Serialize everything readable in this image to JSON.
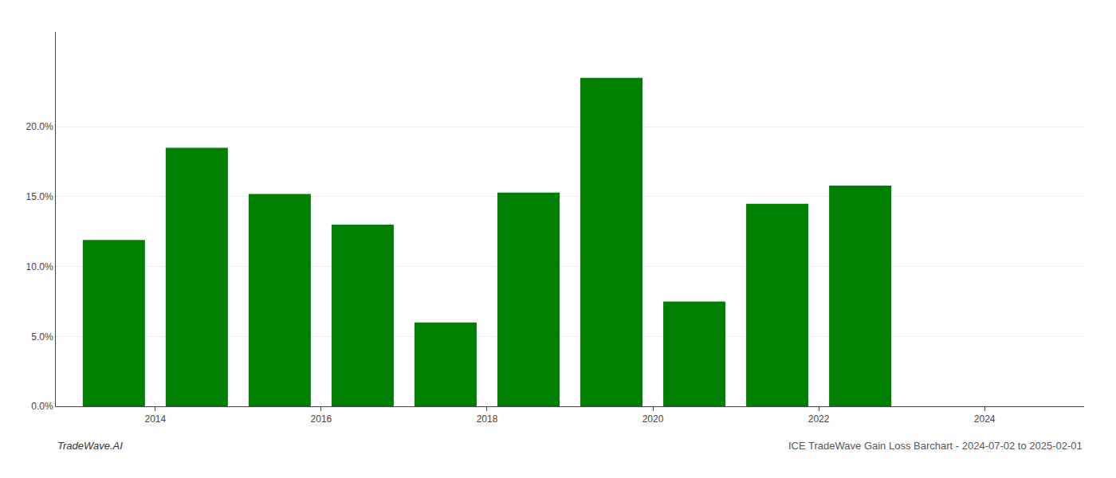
{
  "chart_data": {
    "type": "bar",
    "x": [
      2013.5,
      2014.5,
      2015.5,
      2016.5,
      2017.5,
      2018.5,
      2019.5,
      2020.5,
      2021.5,
      2022.5
    ],
    "values": [
      0.119,
      0.185,
      0.152,
      0.13,
      0.06,
      0.153,
      0.235,
      0.075,
      0.145,
      0.158
    ],
    "color": "#008000",
    "xlim": [
      2012.8,
      2025.2
    ],
    "xticks": [
      2014,
      2016,
      2018,
      2020,
      2022,
      2024
    ],
    "ylim": [
      0,
      0.268
    ],
    "yticks": [
      {
        "value": 0.0,
        "label": "0.0%"
      },
      {
        "value": 0.05,
        "label": "5.0%"
      },
      {
        "value": 0.1,
        "label": "10.0%"
      },
      {
        "value": 0.15,
        "label": "15.0%"
      },
      {
        "value": 0.2,
        "label": "20.0%"
      }
    ],
    "grid": true,
    "annotations": [
      "TradeWave.AI",
      "ICE TradeWave Gain Loss Barchart - 2024-07-02 to 2025-02-01"
    ]
  }
}
